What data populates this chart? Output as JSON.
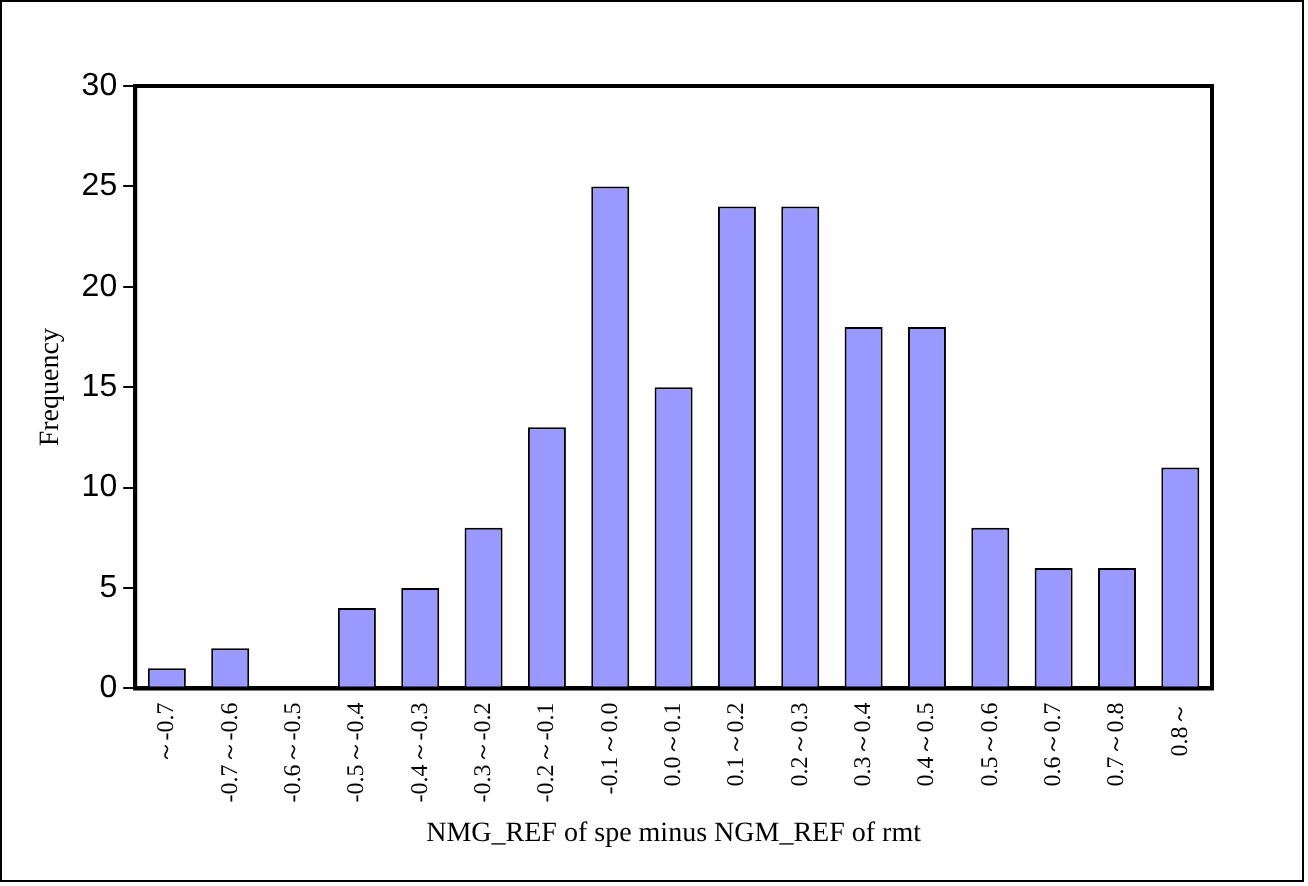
{
  "chart_data": {
    "type": "bar",
    "xlabel": "NMG_REF of spe minus NGM_REF of rmt",
    "ylabel": "Frequency",
    "categories": [
      "～-0.7",
      "-0.7～-0.6",
      "-0.6～-0.5",
      "-0.5～-0.4",
      "-0.4～-0.3",
      "-0.3～-0.2",
      "-0.2～-0.1",
      "-0.1～0.0",
      "0.0～0.1",
      "0.1～0.2",
      "0.2～0.3",
      "0.3～0.4",
      "0.4～0.5",
      "0.5～0.6",
      "0.6～0.7",
      "0.7～0.8",
      "0.8～"
    ],
    "values": [
      1,
      2,
      0,
      4,
      5,
      8,
      13,
      25,
      15,
      24,
      24,
      18,
      18,
      8,
      6,
      6,
      11
    ],
    "color": "#9999ff",
    "ylim": [
      0,
      30
    ],
    "yticks": [
      0,
      5,
      10,
      15,
      20,
      25,
      30
    ],
    "grid": false,
    "legend": false
  }
}
